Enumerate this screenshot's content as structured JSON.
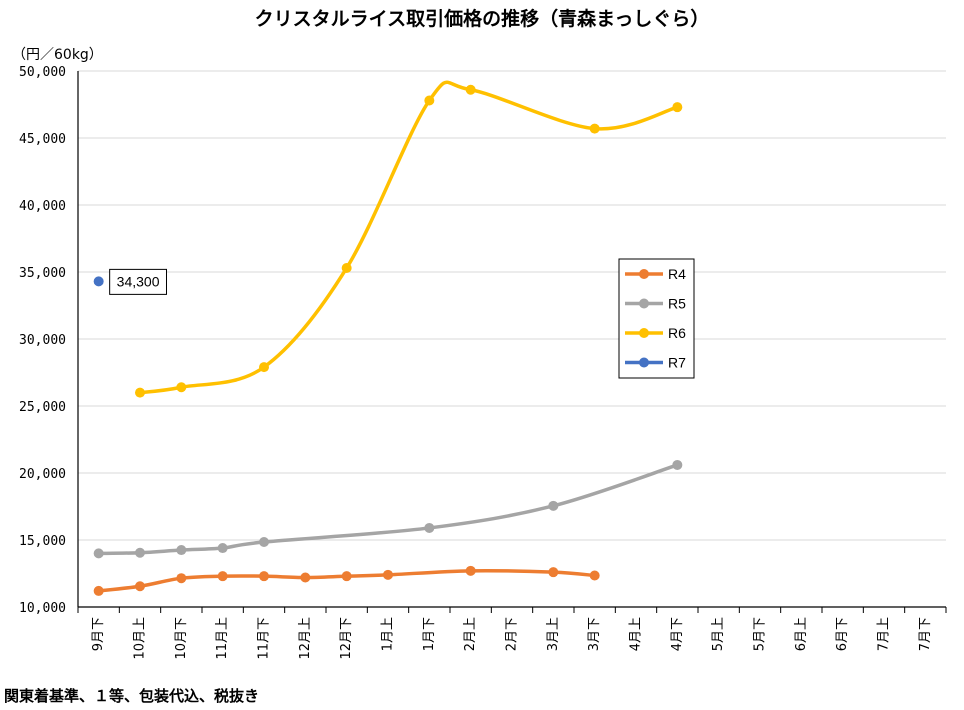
{
  "chart_data": {
    "type": "line",
    "title": "クリスタルライス取引価格の推移（青森まっしぐら）",
    "ylabel": "（円／60kg）",
    "xlabel": "",
    "ylim": [
      10000,
      50000
    ],
    "ytick_step": 5000,
    "grid": true,
    "legend_position": "right-center",
    "categories": [
      "9月下",
      "10月上",
      "10月下",
      "11月上",
      "11月下",
      "12月上",
      "12月下",
      "1月上",
      "1月下",
      "2月上",
      "2月下",
      "3月上",
      "3月下",
      "4月上",
      "4月下",
      "5月上",
      "5月下",
      "6月上",
      "6月下",
      "7月上",
      "7月下"
    ],
    "series": [
      {
        "name": "R4",
        "color": "#ED7D31",
        "values": [
          11200,
          11550,
          12150,
          12300,
          12300,
          12200,
          12300,
          12400,
          null,
          12700,
          null,
          12600,
          12350,
          null,
          null,
          null,
          null,
          null,
          null,
          null,
          null
        ]
      },
      {
        "name": "R5",
        "color": "#A5A5A5",
        "values": [
          14000,
          14050,
          14250,
          14400,
          14850,
          null,
          null,
          null,
          15900,
          null,
          null,
          17550,
          null,
          null,
          20600,
          null,
          null,
          null,
          null,
          null,
          null
        ]
      },
      {
        "name": "R6",
        "color": "#FFC000",
        "values": [
          null,
          26000,
          26400,
          null,
          27900,
          null,
          35300,
          null,
          47800,
          48600,
          null,
          null,
          45700,
          null,
          47300,
          null,
          null,
          null,
          null,
          null,
          null
        ]
      },
      {
        "name": "R7",
        "color": "#4472C4",
        "values": [
          34300,
          null,
          null,
          null,
          null,
          null,
          null,
          null,
          null,
          null,
          null,
          null,
          null,
          null,
          null,
          null,
          null,
          null,
          null,
          null,
          null
        ]
      }
    ],
    "data_labels": [
      {
        "series": "R7",
        "category": "9月下",
        "text": "34,300"
      }
    ]
  },
  "footnote": "関東着基準、１等、包装代込、税抜き"
}
